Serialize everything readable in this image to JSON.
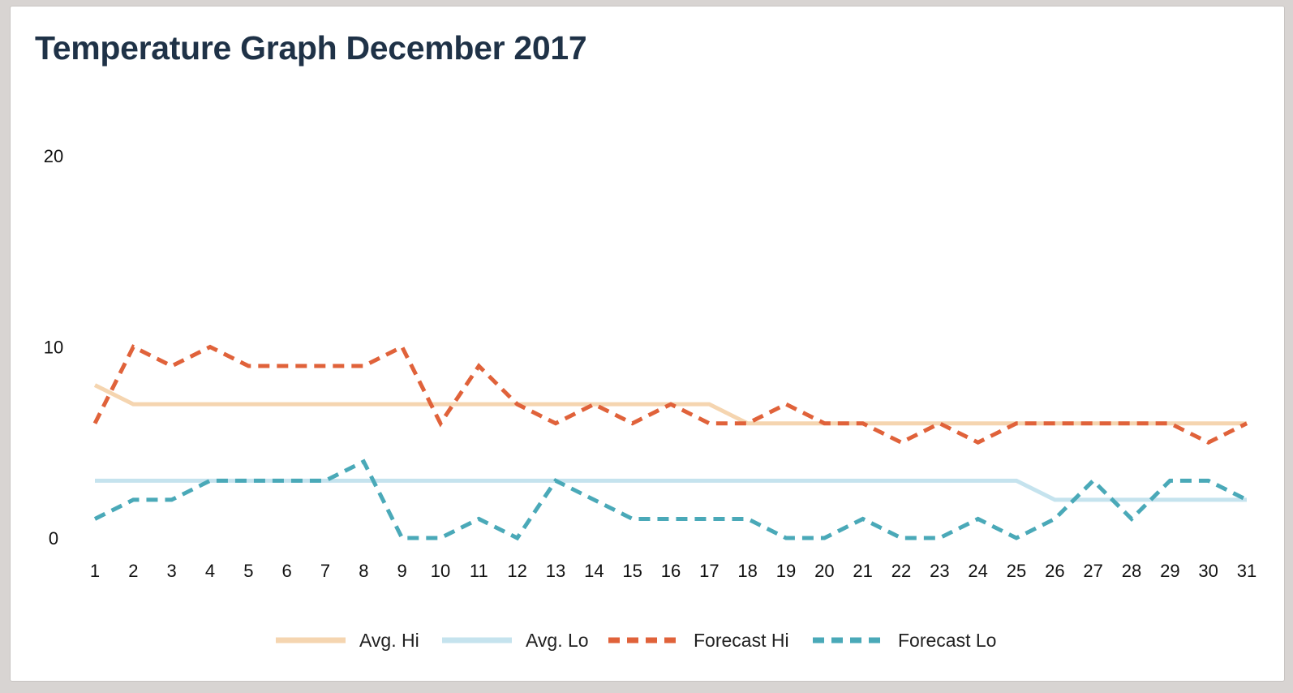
{
  "header": {
    "title": "Temperature Graph December 2017"
  },
  "chart_data": {
    "type": "line",
    "title": "Temperature Graph December 2017",
    "xlabel": "",
    "ylabel": "",
    "x": [
      1,
      2,
      3,
      4,
      5,
      6,
      7,
      8,
      9,
      10,
      11,
      12,
      13,
      14,
      15,
      16,
      17,
      18,
      19,
      20,
      21,
      22,
      23,
      24,
      25,
      26,
      27,
      28,
      29,
      30,
      31
    ],
    "x_tick_labels": [
      "1",
      "2",
      "3",
      "4",
      "5",
      "6",
      "7",
      "8",
      "9",
      "10",
      "11",
      "12",
      "13",
      "14",
      "15",
      "16",
      "17",
      "18",
      "19",
      "20",
      "21",
      "22",
      "23",
      "24",
      "25",
      "26",
      "27",
      "28",
      "29",
      "30",
      "31"
    ],
    "ylim": [
      0,
      20
    ],
    "y_ticks": [
      0,
      10,
      20
    ],
    "y_tick_labels": [
      "0",
      "10",
      "20"
    ],
    "grid": false,
    "legend_position": "bottom-center",
    "series": [
      {
        "name": "Avg. Hi",
        "color": "#f5d5b0",
        "style": "solid",
        "values": [
          8,
          7,
          7,
          7,
          7,
          7,
          7,
          7,
          7,
          7,
          7,
          7,
          7,
          7,
          7,
          7,
          7,
          6,
          6,
          6,
          6,
          6,
          6,
          6,
          6,
          6,
          6,
          6,
          6,
          6,
          6
        ]
      },
      {
        "name": "Avg. Lo",
        "color": "#c5e3ee",
        "style": "solid",
        "values": [
          3,
          3,
          3,
          3,
          3,
          3,
          3,
          3,
          3,
          3,
          3,
          3,
          3,
          3,
          3,
          3,
          3,
          3,
          3,
          3,
          3,
          3,
          3,
          3,
          3,
          2,
          2,
          2,
          2,
          2,
          2
        ]
      },
      {
        "name": "Forecast Hi",
        "color": "#e0623a",
        "style": "dashed",
        "values": [
          6,
          10,
          9,
          10,
          9,
          9,
          9,
          9,
          10,
          6,
          9,
          7,
          6,
          7,
          6,
          7,
          6,
          6,
          7,
          6,
          6,
          5,
          6,
          5,
          6,
          6,
          6,
          6,
          6,
          5,
          6
        ]
      },
      {
        "name": "Forecast Lo",
        "color": "#4aa9b8",
        "style": "dashed",
        "values": [
          1,
          2,
          2,
          3,
          3,
          3,
          3,
          4,
          0,
          0,
          1,
          0,
          3,
          2,
          1,
          1,
          1,
          1,
          0,
          0,
          1,
          0,
          0,
          1,
          0,
          1,
          3,
          1,
          3,
          3,
          2
        ]
      }
    ]
  }
}
